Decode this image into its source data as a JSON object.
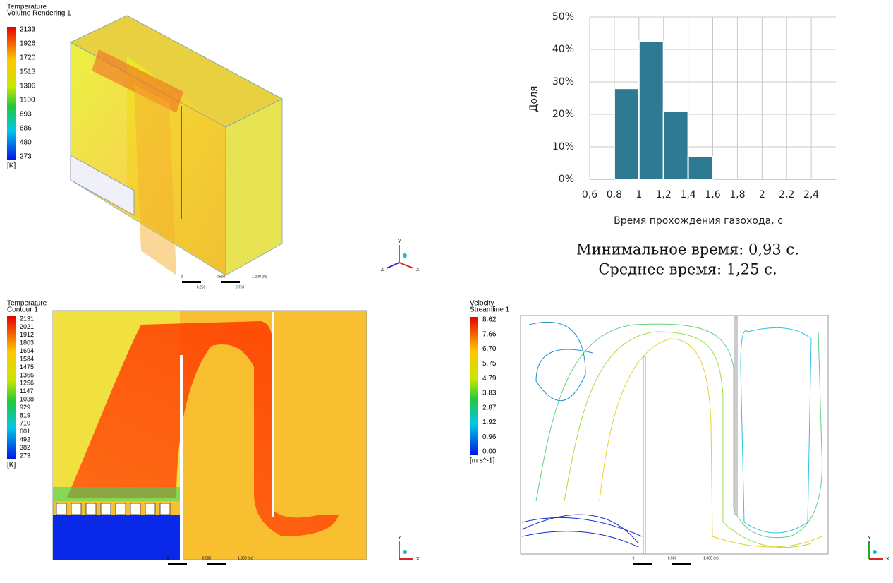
{
  "chart_data": {
    "type": "histogram",
    "xlabel": "Время прохождения газохода, с",
    "ylabel": "Доля",
    "bins": [
      0.8,
      1.0,
      1.2,
      1.4,
      1.6
    ],
    "values": [
      28,
      42.5,
      21,
      7
    ],
    "color": "#2e7a93",
    "xlim": [
      0.6,
      2.6
    ],
    "xticks": [
      {
        "value": 0.6,
        "label": "0,6"
      },
      {
        "value": 0.8,
        "label": "0,8"
      },
      1,
      {
        "value": 1.2,
        "label": "1,2"
      },
      {
        "value": 1.4,
        "label": "1,4"
      },
      {
        "value": 1.6,
        "label": "1,6"
      },
      {
        "value": 1.8,
        "label": "1,8"
      },
      2,
      {
        "value": 2.2,
        "label": "2,2"
      },
      {
        "value": 2.4,
        "label": "2,4"
      }
    ],
    "ylim": [
      0,
      50
    ],
    "yticks": [
      {
        "value": 0,
        "label": "0%"
      },
      {
        "value": 10,
        "label": "10%"
      },
      {
        "value": 20,
        "label": "20%"
      },
      {
        "value": 30,
        "label": "30%"
      },
      {
        "value": 40,
        "label": "40%"
      },
      {
        "value": 50,
        "label": "50%"
      }
    ],
    "grid": true
  },
  "notes": [
    "Минимальное время: 0,93 с.",
    "Среднее время: 1,25 с."
  ],
  "panels": [
    {
      "title": "Temperature",
      "subtitle": "Volume Rendering 1",
      "legend": [
        "2133",
        "1926",
        "1720",
        "1513",
        "1306",
        "1100",
        "893",
        "686",
        "480",
        "273"
      ],
      "unit": "[K]",
      "scale": [
        "0",
        "0.500",
        "1.000 (m)",
        "0.250",
        "0.750"
      ],
      "axes": [
        "Y",
        "Z",
        "X"
      ]
    },
    {
      "title": "Temperature",
      "subtitle": "Contour 1",
      "legend": [
        "2131",
        "2021",
        "1912",
        "1803",
        "1694",
        "1584",
        "1475",
        "1366",
        "1256",
        "1147",
        "1038",
        "929",
        "819",
        "710",
        "601",
        "492",
        "382",
        "273"
      ],
      "unit": "[K]",
      "scale": [
        "0",
        "0.500",
        "1.000 (m)"
      ],
      "axes": [
        "Y",
        "X"
      ]
    },
    {
      "title": "Velocity",
      "subtitle": "Streamline 1",
      "legend": [
        "8.62",
        "7.66",
        "6.70",
        "5.75",
        "4.79",
        "3.83",
        "2.87",
        "1.92",
        "0.96",
        "0.00"
      ],
      "unit": "[m s^-1]",
      "scale": [
        "0",
        "0.500",
        "1.000 (m)"
      ],
      "axes": [
        "Y",
        "X"
      ]
    }
  ]
}
